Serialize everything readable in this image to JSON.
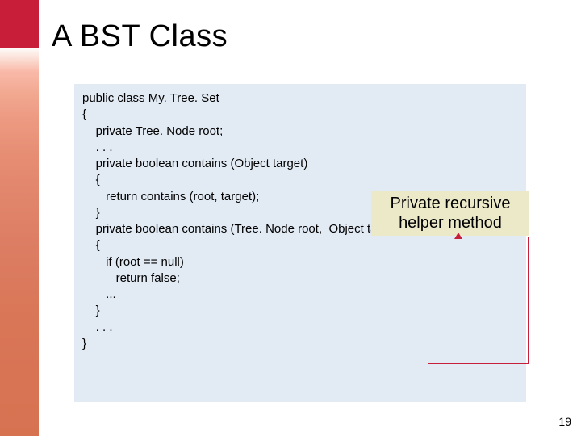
{
  "title": "A BST Class",
  "code": {
    "l1": "public class My. Tree. Set",
    "l2": "{",
    "l3": "    private Tree. Node root;",
    "l4": "    . . .",
    "l5": "    private boolean contains (Object target)",
    "l6": "    {",
    "l7": "       return contains (root, target);",
    "l8": "    }",
    "l9": "",
    "l10": "    private boolean contains (Tree. Node root,  Object target)",
    "l11": "    {",
    "l12": "       if (root == null)",
    "l13": "          return false;",
    "l14": "       ...",
    "l15": "    }",
    "l16": "    . . .",
    "l17": "}"
  },
  "callout": {
    "line1": "Private recursive",
    "line2": "helper method"
  },
  "pageNumber": "19",
  "colors": {
    "codeBg": "#e2eaf4",
    "calloutBg": "#ece9c9",
    "accent": "#c81e3a"
  }
}
